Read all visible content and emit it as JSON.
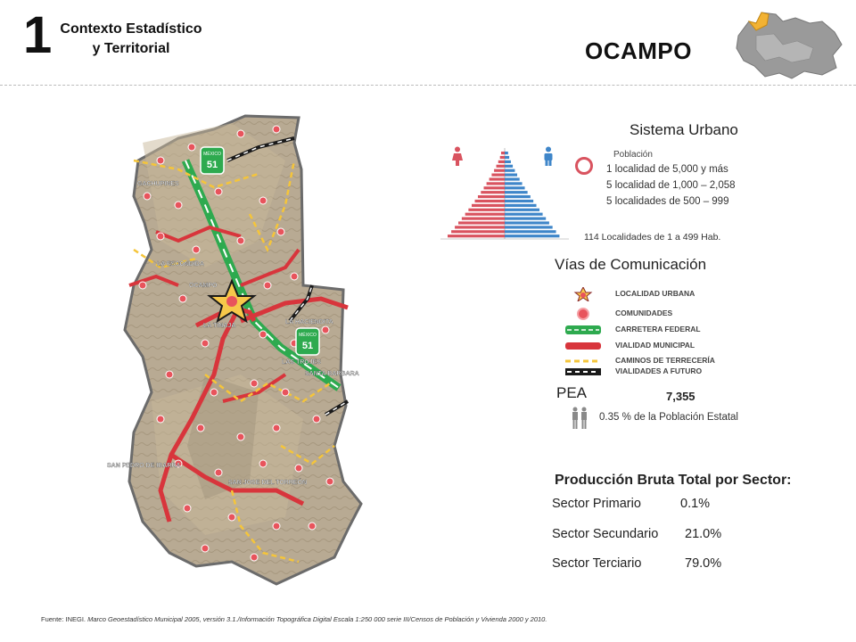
{
  "header": {
    "section_number": "1",
    "section_title_line1": "Contexto Estadístico",
    "section_title_line2": "y Territorial",
    "municipality": "OCAMPO",
    "state_map_icon": "state-locator-map-icon"
  },
  "map": {
    "icon": "municipal-map-image",
    "highway_shield_label": "MÉXICO",
    "highway_shield_number": "51",
    "places": [
      "GACHUPINES",
      "LA ESCONDIDA",
      "OCAMPO",
      "LA TINAJA",
      "LA HACIENDITA",
      "LAS TROJES",
      "SANTA BARBARA",
      "SAN PEDRO DE IBARRA",
      "SAN JOSE DEL TORREÓN"
    ]
  },
  "sistema_urbano": {
    "heading": "Sistema Urbano",
    "poblacion_label": "Población",
    "lines": [
      "1 localidad de  5,000  y más",
      "5 localidad de  1,000  – 2,058",
      "5 localidades de  500  – 999"
    ],
    "small_localities": "114 Localidades de 1 a 499 Hab."
  },
  "vias": {
    "heading": "Vías de Comunicación",
    "legend": [
      {
        "label": "LOCALIDAD URBANA",
        "icon": "star-icon"
      },
      {
        "label": "COMUNIDADES",
        "icon": "red-dot-icon"
      },
      {
        "label": "CARRETERA FEDERAL",
        "icon": "green-road-icon"
      },
      {
        "label": "VIALIDAD MUNICIPAL",
        "icon": "red-road-icon"
      },
      {
        "label": "CAMINOS DE TERRECERÍA",
        "icon": "yellow-dashed-icon"
      },
      {
        "label": "VIALIDADES A FUTURO",
        "icon": "black-dashed-icon"
      }
    ],
    "colors": {
      "federal": "#2eaa4f",
      "municipal": "#d8353c",
      "terraceria": "#f5c53a",
      "futuro": "#1a1a1a"
    }
  },
  "pea": {
    "heading": "PEA",
    "value": "7,355",
    "percent_text": "0.35 %  de la Población Estatal"
  },
  "produccion": {
    "heading": "Producción Bruta Total por Sector:",
    "sectors": [
      {
        "name": "Sector Primario",
        "value": "0.1%"
      },
      {
        "name": "Sector Secundario",
        "value": "21.0%"
      },
      {
        "name": "Sector Terciario",
        "value": "79.0%"
      }
    ]
  },
  "fuente": {
    "prefix": "Fuente: INEGI.",
    "text": "Marco Geoestadístico Municipal 2005, versión 3.1./Información Topográfica Digital Escala 1:250 000 serie III/Censos de Población y Vivienda 2000 y 2010."
  }
}
